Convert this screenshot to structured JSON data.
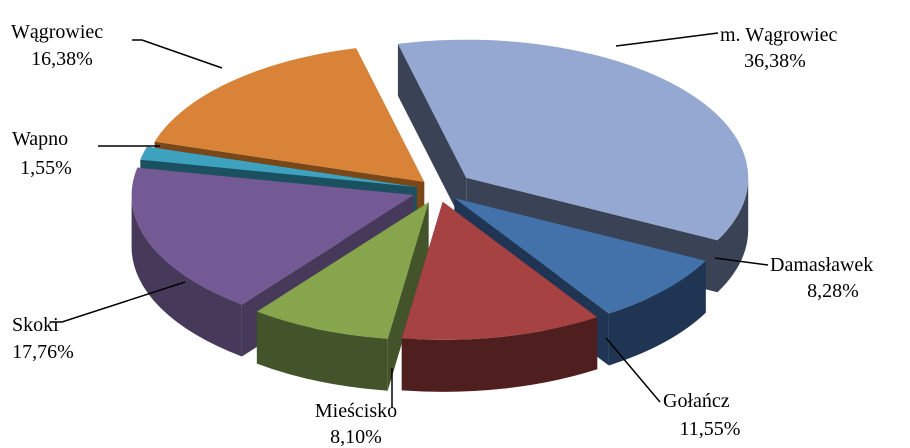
{
  "chart_data": {
    "type": "pie",
    "title": "",
    "slices": [
      {
        "line1": "m.  Wągrowiec",
        "line2": "36,38%",
        "value": 36.38,
        "color": "#94A8D2",
        "side": "#3A4356"
      },
      {
        "line1": "Damasławek",
        "line2": "8,28%",
        "value": 8.28,
        "color": "#4371A9",
        "side": "#1F3553"
      },
      {
        "line1": "Gołańcz",
        "line2": "11,55%",
        "value": 11.55,
        "color": "#A64342",
        "side": "#4E1F1E"
      },
      {
        "line1": "Mieścisko",
        "line2": "8,10%",
        "value": 8.1,
        "color": "#86A54D",
        "side": "#43532A"
      },
      {
        "line1": "Skoki",
        "line2": "17,76%",
        "value": 17.76,
        "color": "#735A94",
        "side": "#46395A"
      },
      {
        "line1": "Wapno",
        "line2": "1,55%",
        "value": 1.55,
        "color": "#3EA2BE",
        "side": "#1B5060"
      },
      {
        "line1": "Wągrowiec",
        "line2": "16,38%",
        "value": 16.38,
        "color": "#D88338",
        "side": "#7A4718"
      }
    ]
  }
}
